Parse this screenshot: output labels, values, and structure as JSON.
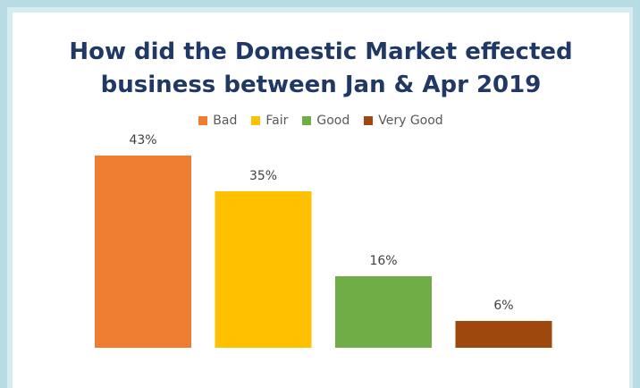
{
  "chart_data": {
    "type": "bar",
    "title_lines": [
      "How did the Domestic Market effected",
      "business between Jan & Apr 2019"
    ],
    "categories": [
      "Bad",
      "Fair",
      "Good",
      "Very Good"
    ],
    "values": [
      43,
      35,
      16,
      6
    ],
    "value_labels": [
      "43%",
      "35%",
      "16%",
      "6%"
    ],
    "colors": [
      "#ed7d31",
      "#ffc000",
      "#70ad47",
      "#9e480e"
    ],
    "ylim": [
      0,
      50
    ],
    "grid": false,
    "legend_position": "top",
    "xlabel": "",
    "ylabel": ""
  }
}
